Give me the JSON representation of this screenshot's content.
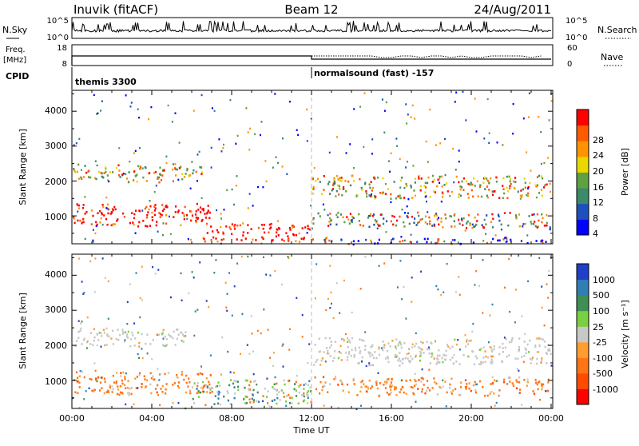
{
  "header": {
    "station": "Inuvik (fitACF)",
    "beam": "Beam 12",
    "date": "24/Aug/2011"
  },
  "top_panels": {
    "nsky_label": "N.Sky",
    "nsky_ticks": [
      "10^5",
      "10^0"
    ],
    "nsearch_label": "N.Search",
    "nsearch_ticks": [
      "10^5",
      "10^0"
    ],
    "freq_label": "Freq.",
    "freq_unit": "[MHz]",
    "freq_ticks": [
      "18",
      "8"
    ],
    "nave_label": "Nave",
    "nave_ticks": [
      "60",
      "0"
    ],
    "cpid_label": "CPID",
    "cpid_modes": [
      {
        "name": "themis 3300",
        "start_hour": 0
      },
      {
        "name": "normalsound (fast) -157",
        "start_hour": 12
      }
    ]
  },
  "chart_data": [
    {
      "type": "heatmap",
      "title": "",
      "quantity": "Power",
      "ylabel": "Slant Range [km]",
      "xlabel": "",
      "ylim": [
        200,
        4600
      ],
      "xlim": [
        0,
        24
      ],
      "yticks": [
        "1000",
        "2000",
        "3000",
        "4000"
      ],
      "colorbar": {
        "label": "Power [dB]",
        "ticks": [
          "28",
          "24",
          "20",
          "16",
          "12",
          "8",
          "4"
        ],
        "colors": [
          "#0000ff",
          "#1f4fbf",
          "#3b8a6b",
          "#5fa040",
          "#e8d800",
          "#ff9400",
          "#ff5a00",
          "#ff0000"
        ]
      },
      "regions": [
        {
          "x": [
            0,
            6.5
          ],
          "y": [
            1900,
            2600
          ],
          "level": "mixed-high"
        },
        {
          "x": [
            0,
            7
          ],
          "y": [
            600,
            1500
          ],
          "level": "high"
        },
        {
          "x": [
            6.5,
            12
          ],
          "y": [
            200,
            900
          ],
          "level": "high"
        },
        {
          "x": [
            12,
            24
          ],
          "y": [
            1400,
            2300
          ],
          "level": "mixed-high"
        },
        {
          "x": [
            12,
            24
          ],
          "y": [
            600,
            1200
          ],
          "level": "mixed"
        },
        {
          "x": [
            12,
            24
          ],
          "y": [
            200,
            400
          ],
          "level": "low"
        }
      ]
    },
    {
      "type": "heatmap",
      "title": "",
      "quantity": "Velocity",
      "ylabel": "Slant Range [km]",
      "xlabel": "Time UT",
      "ylim": [
        200,
        4600
      ],
      "xlim": [
        0,
        24
      ],
      "yticks": [
        "1000",
        "2000",
        "3000",
        "4000"
      ],
      "xticks": [
        "00:00",
        "04:00",
        "08:00",
        "12:00",
        "16:00",
        "20:00",
        "00:00"
      ],
      "colorbar": {
        "label": "Velocity [m s⁻¹]",
        "ticks": [
          "1000",
          "500",
          "100",
          "25",
          "-25",
          "-100",
          "-500",
          "-1000"
        ],
        "colors": [
          "#2140c8",
          "#2f7fb4",
          "#3f8f55",
          "#7ad040",
          "#c8c8c8",
          "#ff9d2e",
          "#ff7414",
          "#ff4a00",
          "#ff0000"
        ]
      },
      "regions": [
        {
          "x": [
            0,
            6
          ],
          "y": [
            1900,
            2600
          ],
          "level": "ground-grey"
        },
        {
          "x": [
            0,
            7
          ],
          "y": [
            500,
            1400
          ],
          "level": "negative"
        },
        {
          "x": [
            6,
            12
          ],
          "y": [
            200,
            1200
          ],
          "level": "mixed"
        },
        {
          "x": [
            12,
            24
          ],
          "y": [
            1300,
            2400
          ],
          "level": "ground-grey"
        },
        {
          "x": [
            12,
            24
          ],
          "y": [
            500,
            1200
          ],
          "level": "negative"
        }
      ]
    }
  ]
}
